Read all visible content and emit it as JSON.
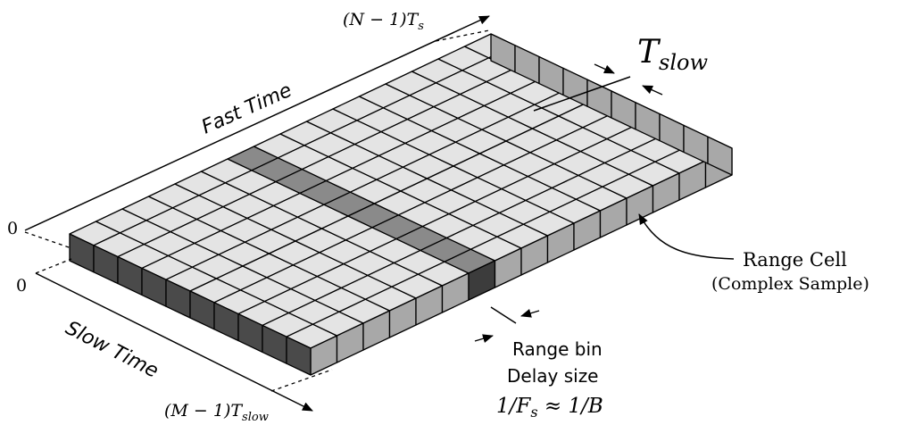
{
  "diagram": {
    "grid": {
      "columns": 16,
      "rows": 10,
      "highlighted_column": 6
    },
    "labels": {
      "fast_time": "Fast Time",
      "slow_time": "Slow Time",
      "n_minus_1_ts": "(N − 1)T",
      "n_minus_1_ts_sub": "s",
      "m_minus_1_tslow": "(M − 1)T",
      "m_minus_1_tslow_sub": "slow",
      "zero_top": "0",
      "zero_left": "0",
      "t_slow": "T",
      "t_slow_sub": "slow",
      "range_cell": "Range Cell",
      "complex_sample": "(Complex Sample)",
      "range_bin": "Range bin",
      "delay_size": "Delay size",
      "rate_relation": "1/F",
      "rate_relation_sub": "s",
      "rate_relation_tail": " ≈ 1/B"
    },
    "colors": {
      "cell_top": "#e4e4e4",
      "cell_highlight": "#8a8a8a",
      "side_light": "#a8a8a8",
      "side_dark": "#4a4a4a",
      "side_highlight": "#3c3c3c",
      "stroke": "#000000"
    }
  }
}
